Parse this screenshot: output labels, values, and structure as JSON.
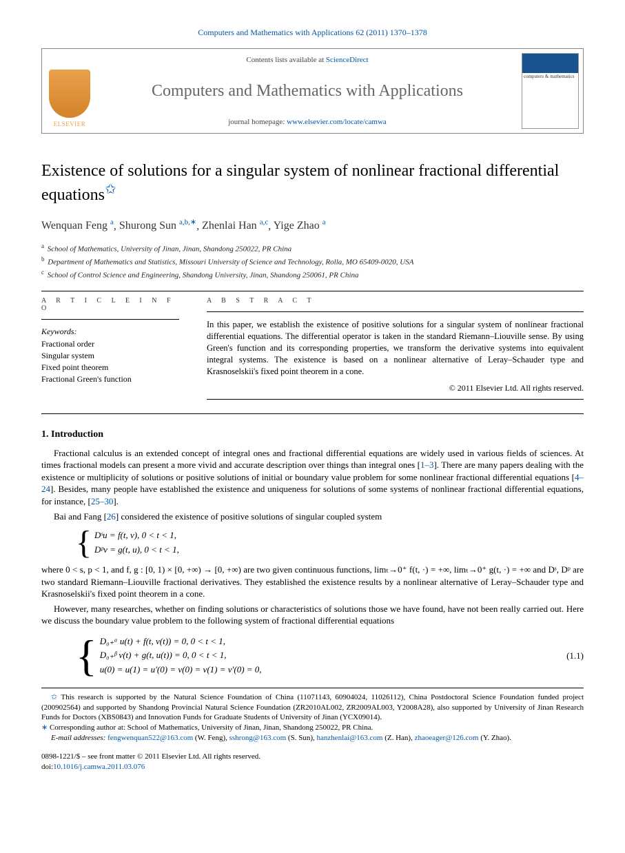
{
  "citation": "Computers and Mathematics with Applications 62 (2011) 1370–1378",
  "header": {
    "contents_prefix": "Contents lists available at ",
    "contents_link": "ScienceDirect",
    "journal": "Computers and Mathematics with Applications",
    "homepage_prefix": "journal homepage: ",
    "homepage_link": "www.elsevier.com/locate/camwa",
    "publisher": "ELSEVIER",
    "cover_title": "computers & mathematics"
  },
  "title": "Existence of solutions for a singular system of nonlinear fractional differential equations",
  "title_marker": "✩",
  "authors": [
    {
      "name": "Wenquan Feng",
      "sup": "a"
    },
    {
      "name": "Shurong Sun",
      "sup": "a,b,∗"
    },
    {
      "name": "Zhenlai Han",
      "sup": "a,c"
    },
    {
      "name": "Yige Zhao",
      "sup": "a"
    }
  ],
  "affiliations": [
    {
      "sup": "a",
      "text": "School of Mathematics, University of Jinan, Jinan, Shandong 250022, PR China"
    },
    {
      "sup": "b",
      "text": "Department of Mathematics and Statistics, Missouri University of Science and Technology, Rolla, MO 65409-0020, USA"
    },
    {
      "sup": "c",
      "text": "School of Control Science and Engineering, Shandong University, Jinan, Shandong 250061, PR China"
    }
  ],
  "info_label": "A R T I C L E   I N F O",
  "abstract_label": "A B S T R A C T",
  "keywords_label": "Keywords:",
  "keywords": [
    "Fractional order",
    "Singular system",
    "Fixed point theorem",
    "Fractional Green's function"
  ],
  "abstract": "In this paper, we establish the existence of positive solutions for a singular system of nonlinear fractional differential equations. The differential operator is taken in the standard Riemann–Liouville sense. By using Green's function and its corresponding properties, we transform the derivative systems into equivalent integral systems. The existence is based on a nonlinear alternative of Leray–Schauder type and Krasnoselskii's fixed point theorem in a cone.",
  "copyright": "© 2011 Elsevier Ltd. All rights reserved.",
  "sections": {
    "intro_head": "1.  Introduction",
    "intro_p1_a": "Fractional calculus is an extended concept of integral ones and fractional differential equations are widely used in various fields of sciences. At times fractional models can present a more vivid and accurate description over things than integral ones [",
    "intro_p1_link1": "1–3",
    "intro_p1_b": "]. There are many papers dealing with the existence or multiplicity of solutions or positive solutions of initial or boundary value problem for some nonlinear fractional differential equations [",
    "intro_p1_link2": "4–24",
    "intro_p1_c": "]. Besides, many people have established the existence and uniqueness for solutions of some systems of nonlinear fractional differential equations, for instance, [",
    "intro_p1_link3": "25–30",
    "intro_p1_d": "].",
    "intro_p2_a": "Bai and Fang [",
    "intro_p2_link": "26",
    "intro_p2_b": "] considered the existence of positive solutions of singular coupled system",
    "eq1_line1": "Dˢu = f(t, v),    0 < t < 1,",
    "eq1_line2": "Dᵖv = g(t, u),    0 < t < 1,",
    "intro_p3": "where 0 < s,  p < 1, and f,  g : [0, 1) × [0, +∞) → [0, +∞) are two given continuous functions, limₜ→0⁺ f(t, ·) = +∞, limₜ→0⁺ g(t, ·) = +∞ and Dˢ, Dᵖ are two standard Riemann–Liouville fractional derivatives. They established the existence results by a nonlinear alternative of Leray–Schauder type and Krasnoselskii's fixed point theorem in a cone.",
    "intro_p4": "However, many researches, whether on finding solutions or characteristics of solutions those we have found, have not been really carried out. Here we discuss the boundary value problem to the following system of fractional differential equations",
    "eq2_line1": "D₀₊ᵅ u(t) + f(t, v(t)) = 0,    0 < t < 1,",
    "eq2_line2": "D₀₊ᵝ v(t) + g(t, u(t)) = 0,    0 < t < 1,",
    "eq2_line3": "u(0) = u(1) = u′(0) = v(0) = v(1) = v′(0) = 0,",
    "eq2_num": "(1.1)"
  },
  "footnotes": {
    "funding": "This research is supported by the Natural Science Foundation of China (11071143, 60904024, 11026112), China Postdoctoral Science Foundation funded project (200902564) and supported by Shandong Provincial Natural Science Foundation (ZR2010AL002, ZR2009AL003, Y2008A28), also supported by University of Jinan Research Funds for Doctors (XBS0843) and Innovation Funds for Graduate Students of University of Jinan (YCX09014).",
    "corresponding": "Corresponding author at: School of Mathematics, University of Jinan, Jinan, Shandong 250022, PR China.",
    "emails_label": "E-mail addresses: ",
    "emails": [
      {
        "addr": "fengwenquan522@163.com",
        "who": "(W. Feng)"
      },
      {
        "addr": "sshrong@163.com",
        "who": "(S. Sun)"
      },
      {
        "addr": "hanzhenlai@163.com",
        "who": "(Z. Han)"
      },
      {
        "addr": "zhaoeager@126.com",
        "who": "(Y. Zhao)"
      }
    ]
  },
  "bottom": {
    "issn": "0898-1221/$ – see front matter © 2011 Elsevier Ltd. All rights reserved.",
    "doi_label": "doi:",
    "doi": "10.1016/j.camwa.2011.03.076"
  }
}
